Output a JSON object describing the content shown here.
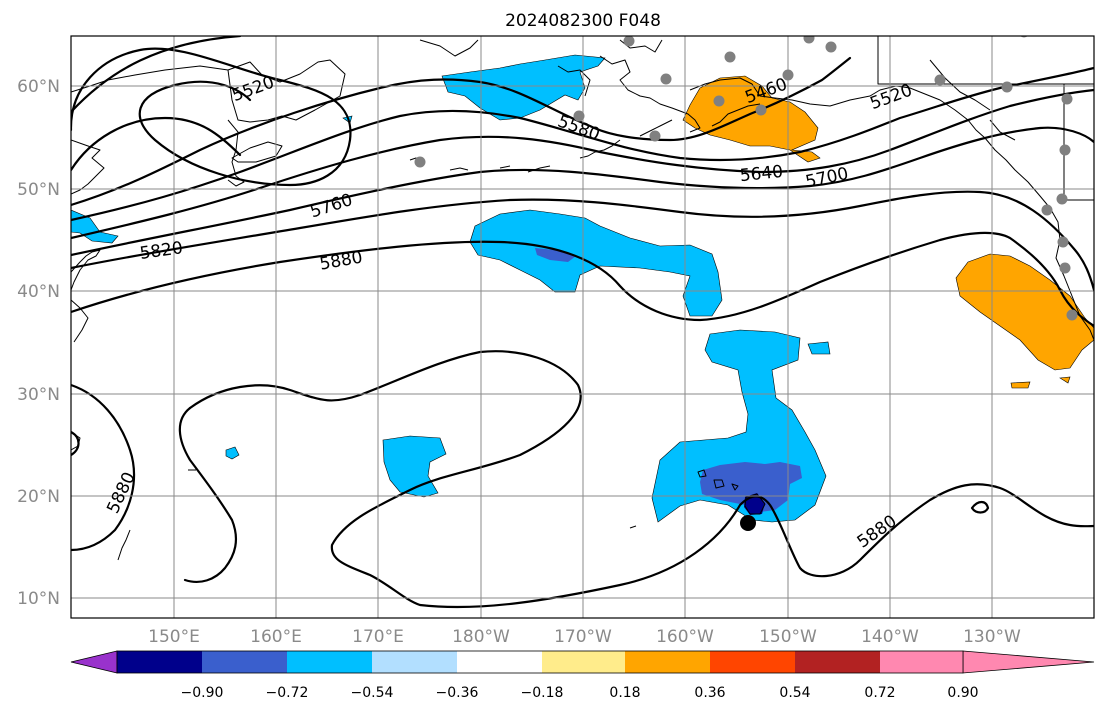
{
  "title": "2024082300 F048",
  "lat_labels": [
    "60°N",
    "50°N",
    "40°N",
    "30°N",
    "20°N",
    "10°N"
  ],
  "lon_labels": [
    "150°E",
    "160°E",
    "170°E",
    "180°W",
    "170°W",
    "160°W",
    "150°W",
    "140°W",
    "130°W"
  ],
  "contour_labels": [
    "5520",
    "5580",
    "5460",
    "5520",
    "5640",
    "5700",
    "5760",
    "5820",
    "5880",
    "5880",
    "5880"
  ],
  "colorbar": {
    "ticks": [
      "−0.90",
      "−0.72",
      "−0.54",
      "−0.36",
      "−0.18",
      "0.18",
      "0.36",
      "0.54",
      "0.72",
      "0.90"
    ],
    "colors": [
      "#9932cc",
      "#00008b",
      "#3a5fcd",
      "#00bfff",
      "#b2dfff",
      "#ffffff",
      "#ffec8b",
      "#ffa500",
      "#ff4500",
      "#b22222",
      "#ff88b0"
    ]
  },
  "markers": {
    "station_color": "#808080",
    "storm_color": "#000000"
  }
}
